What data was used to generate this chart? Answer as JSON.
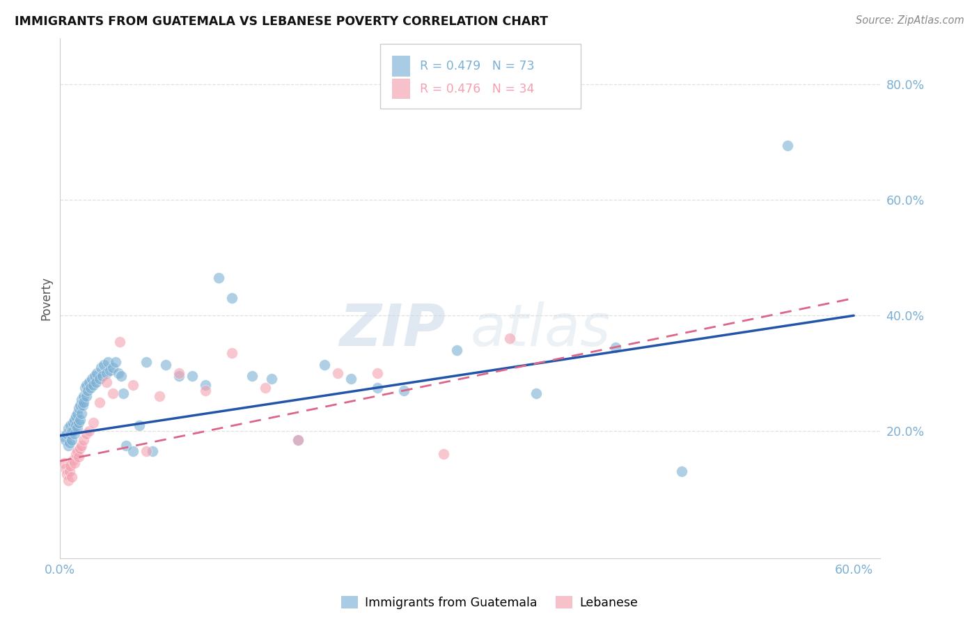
{
  "title": "IMMIGRANTS FROM GUATEMALA VS LEBANESE POVERTY CORRELATION CHART",
  "source": "Source: ZipAtlas.com",
  "ylabel": "Poverty",
  "xlim": [
    0.0,
    0.62
  ],
  "ylim": [
    -0.02,
    0.88
  ],
  "xticks": [
    0.0,
    0.1,
    0.2,
    0.3,
    0.4,
    0.5,
    0.6
  ],
  "yticks": [
    0.2,
    0.4,
    0.6,
    0.8
  ],
  "ytick_labels": [
    "20.0%",
    "40.0%",
    "60.0%",
    "80.0%"
  ],
  "xtick_labels": [
    "0.0%",
    "",
    "",
    "",
    "",
    "",
    "60.0%"
  ],
  "background_color": "#ffffff",
  "grid_color": "#e0e0e0",
  "watermark_zip": "ZIP",
  "watermark_atlas": "atlas",
  "legend_r1": "R = 0.479",
  "legend_n1": "N = 73",
  "legend_r2": "R = 0.476",
  "legend_n2": "N = 34",
  "blue_color": "#7bafd4",
  "pink_color": "#f4a0b0",
  "line_blue": "#2255aa",
  "line_pink": "#dd6688",
  "scatter_blue_x": [
    0.003,
    0.004,
    0.005,
    0.006,
    0.006,
    0.007,
    0.008,
    0.008,
    0.009,
    0.009,
    0.01,
    0.01,
    0.011,
    0.011,
    0.012,
    0.012,
    0.013,
    0.013,
    0.014,
    0.014,
    0.015,
    0.015,
    0.016,
    0.016,
    0.017,
    0.018,
    0.018,
    0.019,
    0.02,
    0.02,
    0.021,
    0.022,
    0.023,
    0.024,
    0.025,
    0.026,
    0.027,
    0.028,
    0.03,
    0.031,
    0.032,
    0.033,
    0.035,
    0.036,
    0.038,
    0.04,
    0.042,
    0.044,
    0.046,
    0.048,
    0.05,
    0.055,
    0.06,
    0.065,
    0.07,
    0.08,
    0.09,
    0.1,
    0.11,
    0.12,
    0.13,
    0.145,
    0.16,
    0.18,
    0.2,
    0.22,
    0.24,
    0.26,
    0.3,
    0.36,
    0.42,
    0.47,
    0.55
  ],
  "scatter_blue_y": [
    0.19,
    0.185,
    0.195,
    0.175,
    0.205,
    0.18,
    0.195,
    0.21,
    0.185,
    0.2,
    0.2,
    0.215,
    0.195,
    0.22,
    0.21,
    0.225,
    0.205,
    0.23,
    0.215,
    0.24,
    0.22,
    0.245,
    0.23,
    0.255,
    0.245,
    0.26,
    0.25,
    0.275,
    0.26,
    0.28,
    0.27,
    0.285,
    0.275,
    0.29,
    0.28,
    0.295,
    0.285,
    0.3,
    0.29,
    0.31,
    0.295,
    0.315,
    0.3,
    0.32,
    0.305,
    0.31,
    0.32,
    0.3,
    0.295,
    0.265,
    0.175,
    0.165,
    0.21,
    0.32,
    0.165,
    0.315,
    0.295,
    0.295,
    0.28,
    0.465,
    0.43,
    0.295,
    0.29,
    0.185,
    0.315,
    0.29,
    0.275,
    0.27,
    0.34,
    0.265,
    0.345,
    0.13,
    0.695
  ],
  "scatter_pink_x": [
    0.003,
    0.004,
    0.005,
    0.006,
    0.007,
    0.008,
    0.009,
    0.01,
    0.011,
    0.012,
    0.013,
    0.014,
    0.015,
    0.016,
    0.018,
    0.02,
    0.022,
    0.025,
    0.03,
    0.035,
    0.04,
    0.045,
    0.055,
    0.065,
    0.075,
    0.09,
    0.11,
    0.13,
    0.155,
    0.18,
    0.21,
    0.24,
    0.29,
    0.34
  ],
  "scatter_pink_y": [
    0.145,
    0.135,
    0.125,
    0.115,
    0.13,
    0.14,
    0.12,
    0.15,
    0.145,
    0.16,
    0.165,
    0.155,
    0.17,
    0.175,
    0.185,
    0.195,
    0.2,
    0.215,
    0.25,
    0.285,
    0.265,
    0.355,
    0.28,
    0.165,
    0.26,
    0.3,
    0.27,
    0.335,
    0.275,
    0.185,
    0.3,
    0.3,
    0.16,
    0.36
  ],
  "blue_line_x": [
    0.0,
    0.6
  ],
  "blue_line_y": [
    0.192,
    0.4
  ],
  "pink_line_x": [
    0.0,
    0.6
  ],
  "pink_line_y": [
    0.148,
    0.43
  ]
}
